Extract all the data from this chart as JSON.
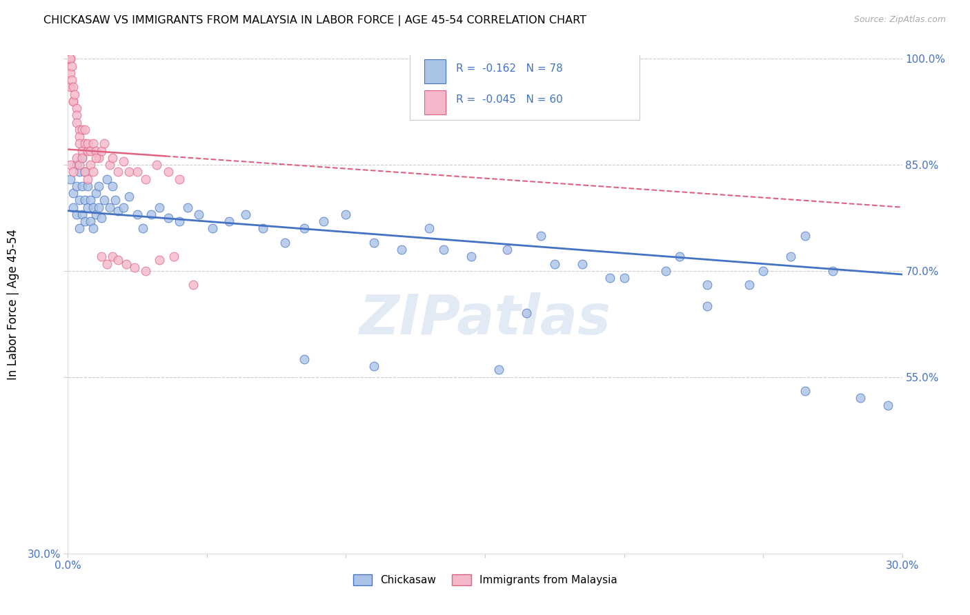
{
  "title": "CHICKASAW VS IMMIGRANTS FROM MALAYSIA IN LABOR FORCE | AGE 45-54 CORRELATION CHART",
  "source": "Source: ZipAtlas.com",
  "ylabel": "In Labor Force | Age 45-54",
  "xlim": [
    0.0,
    0.3
  ],
  "ylim": [
    0.3,
    1.005
  ],
  "color_chickasaw": "#aac4e8",
  "color_chickasaw_edge": "#4472c4",
  "color_malaysia": "#f5b8ca",
  "color_malaysia_edge": "#e06080",
  "color_axis_text": "#4472c4",
  "color_grid": "#cccccc",
  "watermark": "ZIPatlas",
  "watermark_color": "#b8cfe8",
  "trendline_blue_x0": 0.0,
  "trendline_blue_y0": 0.785,
  "trendline_blue_x1": 0.3,
  "trendline_blue_y1": 0.695,
  "trendline_pink_x0": 0.0,
  "trendline_pink_y0": 0.872,
  "trendline_pink_x1": 0.3,
  "trendline_pink_y1": 0.79,
  "trendline_pink_solid_end": 0.035,
  "grid_lines": [
    0.55,
    0.7,
    0.85,
    1.0
  ],
  "chickasaw_x": [
    0.001,
    0.002,
    0.002,
    0.003,
    0.003,
    0.003,
    0.004,
    0.004,
    0.004,
    0.005,
    0.005,
    0.005,
    0.006,
    0.006,
    0.006,
    0.007,
    0.007,
    0.008,
    0.008,
    0.009,
    0.009,
    0.01,
    0.01,
    0.011,
    0.011,
    0.012,
    0.013,
    0.014,
    0.015,
    0.016,
    0.017,
    0.018,
    0.02,
    0.022,
    0.025,
    0.027,
    0.03,
    0.033,
    0.036,
    0.04,
    0.043,
    0.047,
    0.052,
    0.058,
    0.064,
    0.07,
    0.078,
    0.085,
    0.092,
    0.1,
    0.11,
    0.12,
    0.13,
    0.145,
    0.158,
    0.17,
    0.185,
    0.2,
    0.215,
    0.23,
    0.245,
    0.26,
    0.275,
    0.135,
    0.175,
    0.195,
    0.25,
    0.265,
    0.22,
    0.155,
    0.085,
    0.11,
    0.165,
    0.23,
    0.265,
    0.285,
    0.295,
    0.155
  ],
  "chickasaw_y": [
    0.83,
    0.81,
    0.79,
    0.85,
    0.82,
    0.78,
    0.84,
    0.8,
    0.76,
    0.86,
    0.82,
    0.78,
    0.84,
    0.8,
    0.77,
    0.82,
    0.79,
    0.8,
    0.77,
    0.79,
    0.76,
    0.81,
    0.78,
    0.82,
    0.79,
    0.775,
    0.8,
    0.83,
    0.79,
    0.82,
    0.8,
    0.785,
    0.79,
    0.805,
    0.78,
    0.76,
    0.78,
    0.79,
    0.775,
    0.77,
    0.79,
    0.78,
    0.76,
    0.77,
    0.78,
    0.76,
    0.74,
    0.76,
    0.77,
    0.78,
    0.74,
    0.73,
    0.76,
    0.72,
    0.73,
    0.75,
    0.71,
    0.69,
    0.7,
    0.68,
    0.68,
    0.72,
    0.7,
    0.73,
    0.71,
    0.69,
    0.7,
    0.75,
    0.72,
    0.56,
    0.575,
    0.565,
    0.64,
    0.65,
    0.53,
    0.52,
    0.51,
    0.96
  ],
  "malaysia_x": [
    0.0005,
    0.0005,
    0.001,
    0.001,
    0.001,
    0.001,
    0.0015,
    0.0015,
    0.002,
    0.002,
    0.002,
    0.0025,
    0.003,
    0.003,
    0.003,
    0.004,
    0.004,
    0.004,
    0.005,
    0.005,
    0.006,
    0.006,
    0.007,
    0.007,
    0.008,
    0.009,
    0.01,
    0.011,
    0.012,
    0.013,
    0.015,
    0.016,
    0.018,
    0.02,
    0.022,
    0.025,
    0.028,
    0.032,
    0.036,
    0.04,
    0.001,
    0.002,
    0.003,
    0.004,
    0.005,
    0.006,
    0.007,
    0.008,
    0.009,
    0.01,
    0.012,
    0.014,
    0.016,
    0.018,
    0.021,
    0.024,
    0.028,
    0.033,
    0.038,
    0.045
  ],
  "malaysia_y": [
    1.0,
    1.0,
    1.0,
    1.0,
    0.98,
    0.96,
    0.99,
    0.97,
    0.94,
    0.96,
    0.94,
    0.95,
    0.93,
    0.92,
    0.91,
    0.9,
    0.89,
    0.88,
    0.9,
    0.87,
    0.88,
    0.9,
    0.87,
    0.88,
    0.87,
    0.88,
    0.87,
    0.86,
    0.87,
    0.88,
    0.85,
    0.86,
    0.84,
    0.855,
    0.84,
    0.84,
    0.83,
    0.85,
    0.84,
    0.83,
    0.85,
    0.84,
    0.86,
    0.85,
    0.86,
    0.84,
    0.83,
    0.85,
    0.84,
    0.86,
    0.72,
    0.71,
    0.72,
    0.715,
    0.71,
    0.705,
    0.7,
    0.715,
    0.72,
    0.68
  ]
}
